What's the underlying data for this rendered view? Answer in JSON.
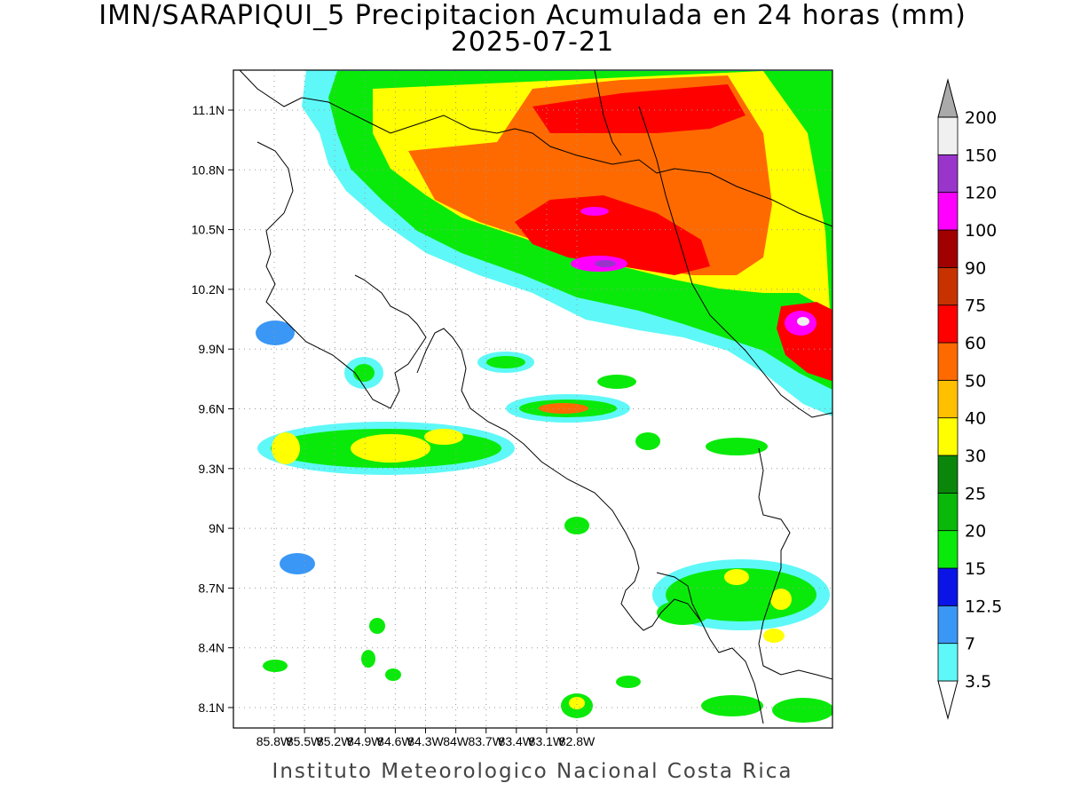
{
  "title_line1": "IMN/SARAPIQUI_5 Precipitacion Acumulada en 24 horas (mm)",
  "title_line2": "2025-07-21",
  "footer": "Instituto Meteorologico Nacional Costa Rica",
  "map": {
    "lon_labels": [
      "85.8W",
      "85.5W",
      "85.2W",
      "84.9W",
      "84.6W",
      "84.3W",
      "84W",
      "83.7W",
      "83.4W",
      "83.1W",
      "82.8W"
    ],
    "lat_labels": [
      "11.1N",
      "10.8N",
      "10.5N",
      "10.2N",
      "9.9N",
      "9.6N",
      "9.3N",
      "9N",
      "8.7N",
      "8.4N",
      "8.1N"
    ]
  },
  "colorbar": {
    "levels": [
      "3.5",
      "7",
      "12.5",
      "15",
      "20",
      "25",
      "30",
      "40",
      "50",
      "60",
      "75",
      "90",
      "100",
      "120",
      "150",
      "200"
    ],
    "colors": [
      "#ffffff",
      "#5ef8f8",
      "#3a97f5",
      "#0a14e6",
      "#0aea0a",
      "#0ab80a",
      "#0a870a",
      "#ffff00",
      "#ffc000",
      "#ff6a00",
      "#ff0000",
      "#c83200",
      "#a00000",
      "#ff00ff",
      "#9a35cc",
      "#f0f0f0",
      "#aaaaaa"
    ]
  }
}
